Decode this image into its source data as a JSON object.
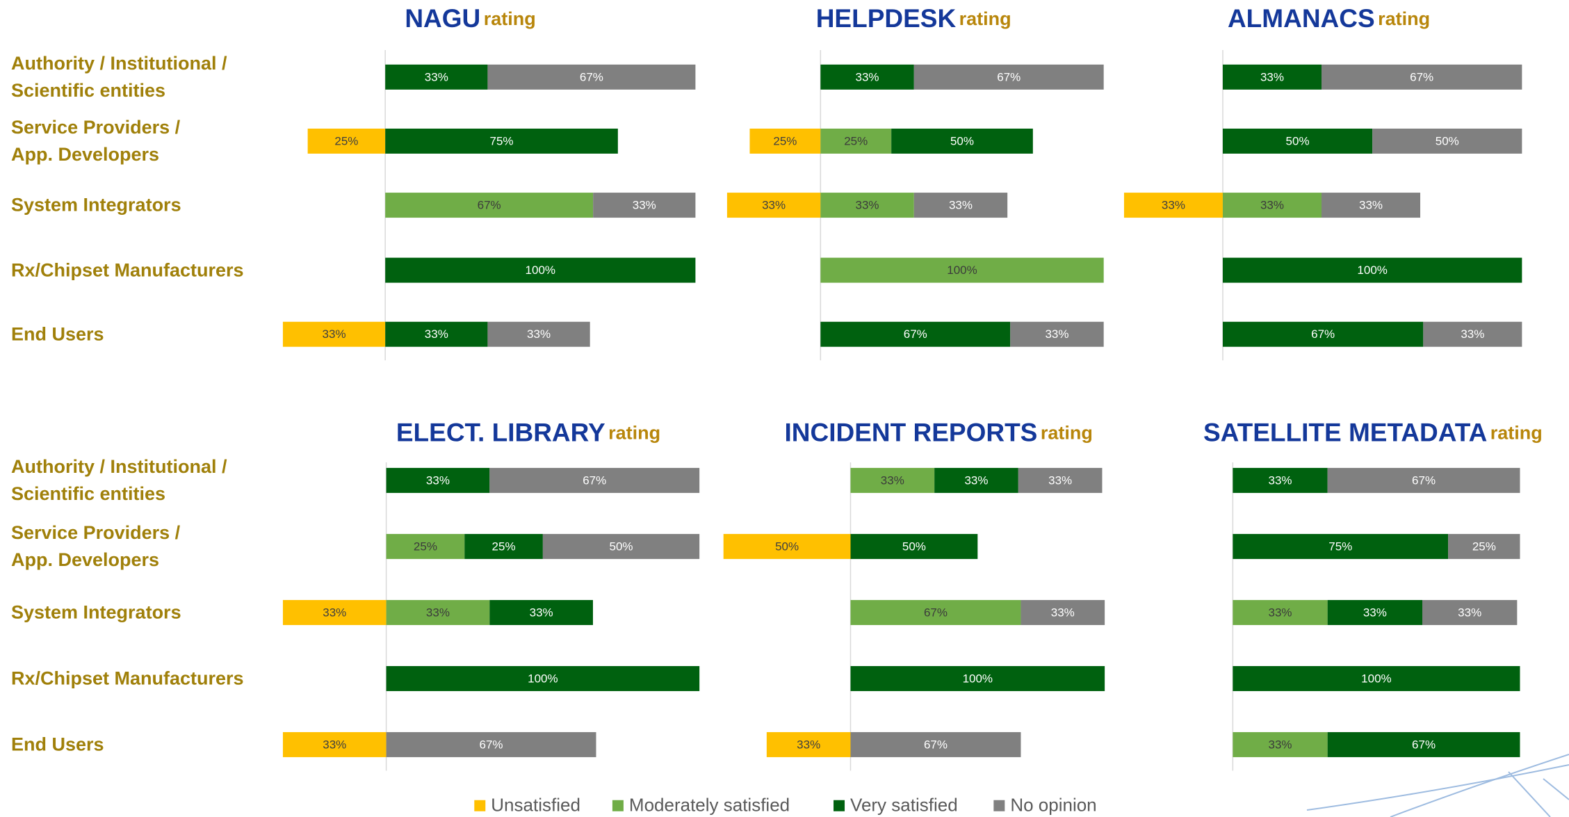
{
  "legend": [
    {
      "name": "Unsatisfied",
      "color": "#ffc000"
    },
    {
      "name": "Moderately satisfied",
      "color": "#70ad47"
    },
    {
      "name": "Very satisfied",
      "color": "#00610f"
    },
    {
      "name": "No opinion",
      "color": "#808080"
    }
  ],
  "chart_data": [
    {
      "type": "bar",
      "title": "NAGU",
      "subtitle": "rating",
      "xlim": [
        -50,
        100
      ],
      "categories": [
        "Authority / Institutional /\nScientific entities",
        "Service Providers /\nApp. Developers",
        "System Integrators",
        "Rx/Chipset Manufacturers",
        "End Users"
      ],
      "series": [
        {
          "values": [
            null,
            25,
            null,
            null,
            33
          ],
          "value_labels": [
            null,
            "25%",
            null,
            null,
            "33%"
          ]
        },
        {
          "values": [
            null,
            null,
            67,
            null,
            null
          ],
          "value_labels": [
            null,
            null,
            "67%",
            null,
            null
          ]
        },
        {
          "values": [
            33,
            75,
            null,
            100,
            33
          ],
          "value_labels": [
            "33%",
            "75%",
            null,
            "100%",
            "33%"
          ]
        },
        {
          "values": [
            67,
            null,
            33,
            null,
            33
          ],
          "value_labels": [
            "67%",
            null,
            "33%",
            null,
            "33%"
          ]
        }
      ]
    },
    {
      "type": "bar",
      "title": "HELPDESK",
      "subtitle": "rating",
      "xlim": [
        -50,
        100
      ],
      "series": [
        {
          "values": [
            null,
            25,
            33,
            null,
            null
          ],
          "value_labels": [
            null,
            "25%",
            "33%",
            null,
            null
          ]
        },
        {
          "values": [
            null,
            25,
            33,
            100,
            null
          ],
          "value_labels": [
            null,
            "25%",
            "33%",
            "100%",
            null
          ]
        },
        {
          "values": [
            33,
            50,
            null,
            null,
            67
          ],
          "value_labels": [
            "33%",
            "50%",
            null,
            null,
            "67%"
          ]
        },
        {
          "values": [
            67,
            null,
            33,
            null,
            33
          ],
          "value_labels": [
            "67%",
            null,
            "33%",
            null,
            "33%"
          ]
        }
      ]
    },
    {
      "type": "bar",
      "title": "ALMANACS",
      "subtitle": "rating",
      "xlim": [
        -50,
        100
      ],
      "series": [
        {
          "values": [
            null,
            null,
            33,
            null,
            null
          ],
          "value_labels": [
            null,
            null,
            "33%",
            null,
            null
          ]
        },
        {
          "values": [
            null,
            null,
            33,
            null,
            null
          ],
          "value_labels": [
            null,
            null,
            "33%",
            null,
            null
          ]
        },
        {
          "values": [
            33,
            50,
            null,
            100,
            67
          ],
          "value_labels": [
            "33%",
            "50%",
            null,
            "100%",
            "67%"
          ]
        },
        {
          "values": [
            67,
            50,
            33,
            null,
            33
          ],
          "value_labels": [
            "67%",
            "50%",
            "33%",
            null,
            "33%"
          ]
        }
      ]
    },
    {
      "type": "bar",
      "title": "ELECT. LIBRARY",
      "subtitle": "rating",
      "xlim": [
        -50,
        100
      ],
      "categories": [
        "Authority / Institutional /\nScientific entities",
        "Service Providers /\nApp. Developers",
        "System Integrators",
        "Rx/Chipset Manufacturers",
        "End Users"
      ],
      "series": [
        {
          "values": [
            null,
            null,
            33,
            null,
            33
          ],
          "value_labels": [
            null,
            null,
            "33%",
            null,
            "33%"
          ]
        },
        {
          "values": [
            null,
            25,
            33,
            null,
            null
          ],
          "value_labels": [
            null,
            "25%",
            "33%",
            null,
            null
          ]
        },
        {
          "values": [
            33,
            25,
            33,
            100,
            null
          ],
          "value_labels": [
            "33%",
            "25%",
            "33%",
            "100%",
            null
          ]
        },
        {
          "values": [
            67,
            50,
            null,
            null,
            67
          ],
          "value_labels": [
            "67%",
            "50%",
            null,
            null,
            "67%"
          ]
        }
      ]
    },
    {
      "type": "bar",
      "title": "INCIDENT REPORTS",
      "subtitle": "rating",
      "xlim": [
        -50,
        100
      ],
      "series": [
        {
          "values": [
            null,
            50,
            null,
            null,
            33
          ],
          "value_labels": [
            null,
            "50%",
            null,
            null,
            "33%"
          ]
        },
        {
          "values": [
            33,
            null,
            67,
            null,
            null
          ],
          "value_labels": [
            "33%",
            null,
            "67%",
            null,
            null
          ]
        },
        {
          "values": [
            33,
            50,
            null,
            100,
            null
          ],
          "value_labels": [
            "33%",
            "50%",
            null,
            "100%",
            null
          ]
        },
        {
          "values": [
            33,
            null,
            33,
            null,
            67
          ],
          "value_labels": [
            "33%",
            null,
            "33%",
            null,
            "67%"
          ]
        }
      ]
    },
    {
      "type": "bar",
      "title": "SATELLITE METADATA",
      "subtitle": "rating",
      "xlim": [
        -50,
        100
      ],
      "series": [
        {
          "values": [
            null,
            null,
            null,
            null,
            null
          ],
          "value_labels": [
            null,
            null,
            null,
            null,
            null
          ]
        },
        {
          "values": [
            null,
            null,
            33,
            null,
            33
          ],
          "value_labels": [
            null,
            null,
            "33%",
            null,
            "33%"
          ]
        },
        {
          "values": [
            33,
            75,
            33,
            100,
            67
          ],
          "value_labels": [
            "33%",
            "75%",
            "33%",
            "100%",
            "67%"
          ]
        },
        {
          "values": [
            67,
            25,
            33,
            null,
            null
          ],
          "value_labels": [
            "67%",
            "25%",
            "33%",
            null,
            null
          ]
        }
      ]
    }
  ]
}
